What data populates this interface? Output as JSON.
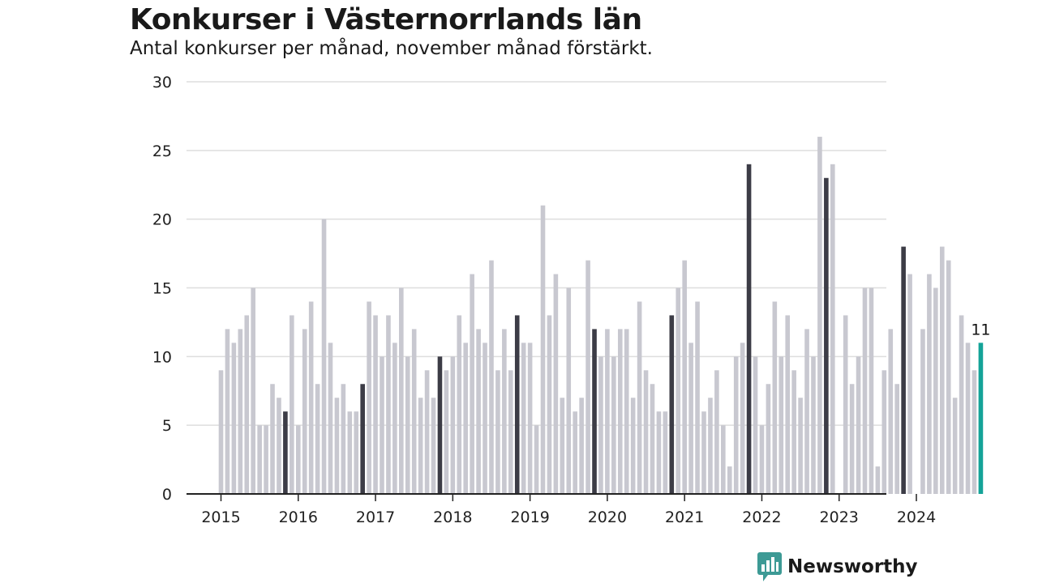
{
  "brand": {
    "name": "Newsworthy",
    "color": "#3d9a95"
  },
  "chart_data": {
    "type": "bar",
    "title": "Konkurser i Västernorrlands län",
    "subtitle": "Antal konkurser per månad, november månad förstärkt.",
    "xlabel": "",
    "ylabel": "",
    "ylim": [
      0,
      30
    ],
    "yticks": [
      0,
      5,
      10,
      15,
      20,
      25,
      30
    ],
    "xticks": [
      "2015",
      "2016",
      "2017",
      "2018",
      "2019",
      "2020",
      "2021",
      "2022",
      "2023",
      "2024"
    ],
    "grid": true,
    "legend": "none",
    "colors": {
      "default": "#c8c8d0",
      "highlight_november": "#3c3c46",
      "latest": "#14a398"
    },
    "start_month": "2015-01",
    "highlight_month": 11,
    "values": [
      9,
      12,
      11,
      12,
      13,
      15,
      5,
      5,
      8,
      7,
      6,
      13,
      5,
      12,
      14,
      8,
      20,
      11,
      7,
      8,
      6,
      6,
      8,
      14,
      13,
      10,
      13,
      11,
      15,
      10,
      12,
      7,
      9,
      7,
      10,
      9,
      10,
      13,
      11,
      16,
      12,
      11,
      17,
      9,
      12,
      9,
      13,
      11,
      11,
      5,
      21,
      13,
      16,
      7,
      15,
      6,
      7,
      17,
      12,
      10,
      12,
      10,
      12,
      12,
      7,
      14,
      9,
      8,
      6,
      6,
      13,
      15,
      17,
      11,
      14,
      6,
      7,
      9,
      5,
      2,
      10,
      11,
      24,
      10,
      5,
      8,
      14,
      10,
      13,
      9,
      7,
      12,
      10,
      26,
      23,
      24,
      0,
      13,
      8,
      10,
      15,
      15,
      2,
      9,
      12,
      8,
      18,
      16,
      0,
      12,
      16,
      15,
      18,
      17,
      7,
      13,
      11,
      9,
      11
    ],
    "annotations": [
      {
        "month": "2024-11",
        "text": "11"
      }
    ]
  }
}
